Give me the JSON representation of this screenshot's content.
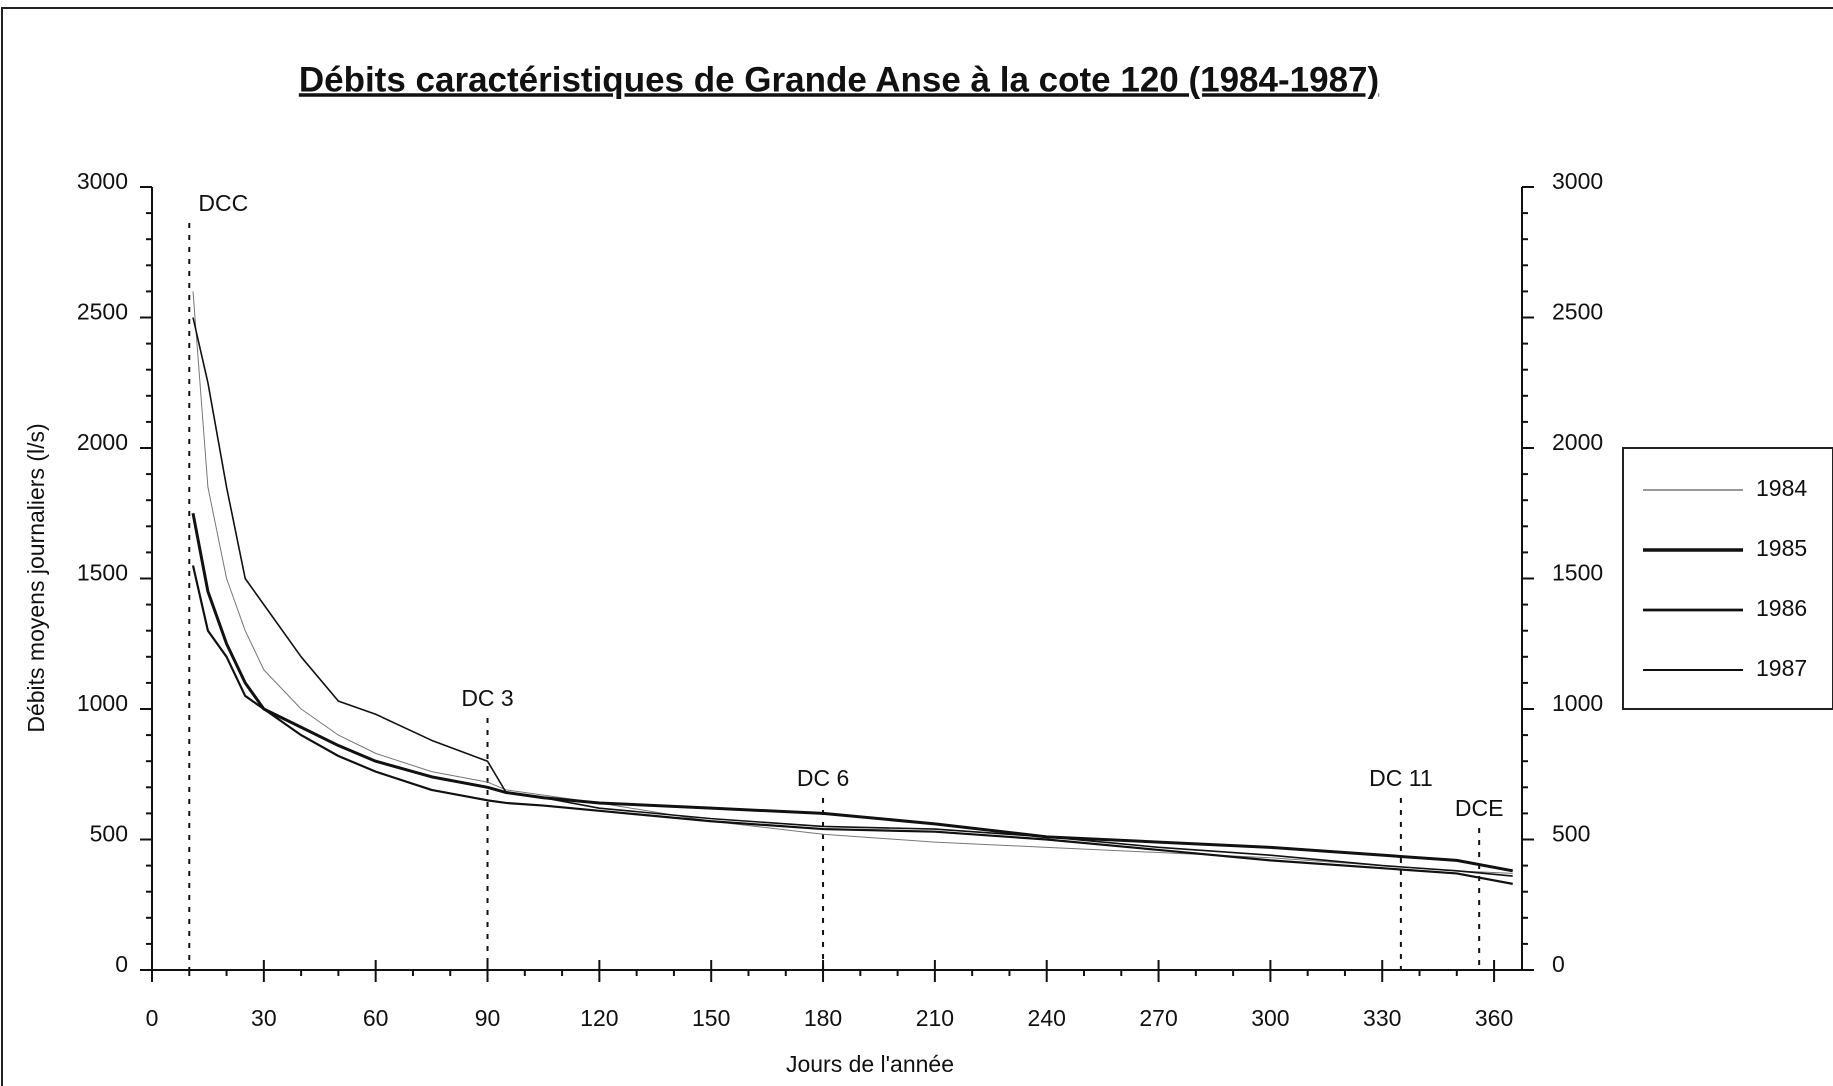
{
  "chart_data": {
    "type": "line",
    "title": "Débits caractéristiques de Grande Anse à la cote 120 (1984-1987)",
    "x_label": "Jours de l'année",
    "y_label": "Débits moyens journaliers (l/s)",
    "x": [
      11,
      15,
      20,
      25,
      30,
      40,
      50,
      60,
      75,
      90,
      95,
      105,
      120,
      150,
      180,
      210,
      240,
      270,
      300,
      330,
      350,
      365
    ],
    "series": [
      {
        "name": "1984",
        "color": "#777777",
        "width": 1,
        "values": [
          2600,
          1850,
          1500,
          1300,
          1150,
          1000,
          900,
          830,
          760,
          720,
          690,
          670,
          640,
          570,
          520,
          490,
          470,
          450,
          430,
          400,
          380,
          370
        ]
      },
      {
        "name": "1985",
        "color": "#111111",
        "width": 3,
        "values": [
          1750,
          1450,
          1250,
          1100,
          1000,
          930,
          860,
          800,
          740,
          700,
          680,
          660,
          640,
          620,
          600,
          560,
          510,
          490,
          470,
          440,
          420,
          380
        ]
      },
      {
        "name": "1986",
        "color": "#111111",
        "width": 2.2,
        "values": [
          1550,
          1300,
          1200,
          1050,
          1000,
          900,
          820,
          760,
          690,
          650,
          640,
          630,
          610,
          570,
          540,
          530,
          500,
          460,
          420,
          390,
          370,
          330
        ]
      },
      {
        "name": "1987",
        "color": "#111111",
        "width": 1.6,
        "values": [
          2500,
          2250,
          1850,
          1500,
          1400,
          1200,
          1030,
          980,
          880,
          800,
          680,
          660,
          620,
          580,
          550,
          540,
          510,
          470,
          440,
          400,
          380,
          360
        ]
      }
    ],
    "annotations": [
      {
        "text": "DCC",
        "x": 10
      },
      {
        "text": "DC 3",
        "x": 90
      },
      {
        "text": "DC 6",
        "x": 180
      },
      {
        "text": "DC 11",
        "x": 335
      },
      {
        "text": "DCE",
        "x": 356
      }
    ],
    "xlim": [
      0,
      365
    ],
    "xticks": [
      0,
      30,
      60,
      90,
      120,
      150,
      180,
      210,
      240,
      270,
      300,
      330,
      360
    ],
    "ylim": [
      0,
      3000
    ],
    "yticks": [
      0,
      500,
      1000,
      1500,
      2000,
      2500,
      3000
    ],
    "y2lim": [
      0,
      3000
    ],
    "y2ticks": [
      0,
      500,
      1000,
      1500,
      2000,
      2500,
      3000
    ],
    "legend": "right"
  }
}
